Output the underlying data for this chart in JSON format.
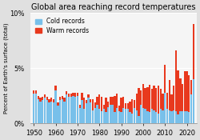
{
  "title": "Global area reaching record temperatures",
  "ylabel": "Percent of Earth's surface (total)",
  "ylim": [
    0,
    0.1
  ],
  "yticks": [
    0,
    0.05,
    0.1
  ],
  "ytick_labels": [
    "0%",
    "5%",
    "10%"
  ],
  "cold_color": "#78c0ea",
  "warm_color": "#e8391e",
  "bg_color": "#e0e0e0",
  "legend_labels": [
    "Cold records",
    "Warm records"
  ],
  "years": [
    1950,
    1951,
    1952,
    1953,
    1954,
    1955,
    1956,
    1957,
    1958,
    1959,
    1960,
    1961,
    1962,
    1963,
    1964,
    1965,
    1966,
    1967,
    1968,
    1969,
    1970,
    1971,
    1972,
    1973,
    1974,
    1975,
    1976,
    1977,
    1978,
    1979,
    1980,
    1981,
    1982,
    1983,
    1984,
    1985,
    1986,
    1987,
    1988,
    1989,
    1990,
    1991,
    1992,
    1993,
    1994,
    1995,
    1996,
    1997,
    1998,
    1999,
    2000,
    2001,
    2002,
    2003,
    2004,
    2005,
    2006,
    2007,
    2008,
    2009,
    2010,
    2011,
    2012,
    2013,
    2014,
    2015,
    2016,
    2017,
    2018,
    2019,
    2020,
    2021,
    2022,
    2023
  ],
  "cold": [
    0.027,
    0.027,
    0.022,
    0.02,
    0.021,
    0.023,
    0.021,
    0.019,
    0.02,
    0.019,
    0.03,
    0.016,
    0.021,
    0.022,
    0.02,
    0.026,
    0.024,
    0.024,
    0.025,
    0.024,
    0.025,
    0.014,
    0.021,
    0.013,
    0.018,
    0.023,
    0.019,
    0.012,
    0.014,
    0.017,
    0.013,
    0.011,
    0.013,
    0.01,
    0.015,
    0.017,
    0.017,
    0.01,
    0.014,
    0.011,
    0.01,
    0.014,
    0.013,
    0.013,
    0.01,
    0.009,
    0.014,
    0.012,
    0.007,
    0.017,
    0.014,
    0.013,
    0.011,
    0.01,
    0.013,
    0.012,
    0.01,
    0.009,
    0.013,
    0.012,
    0.028,
    0.013,
    0.012,
    0.011,
    0.012,
    0.011,
    0.008,
    0.011,
    0.011,
    0.011,
    0.011,
    0.01,
    0.026,
    0.04
  ],
  "warm": [
    0.003,
    0.003,
    0.003,
    0.003,
    0.003,
    0.003,
    0.003,
    0.003,
    0.003,
    0.003,
    0.004,
    0.003,
    0.003,
    0.003,
    0.003,
    0.003,
    0.003,
    0.003,
    0.003,
    0.004,
    0.003,
    0.003,
    0.007,
    0.01,
    0.003,
    0.003,
    0.003,
    0.01,
    0.005,
    0.007,
    0.013,
    0.013,
    0.004,
    0.013,
    0.005,
    0.007,
    0.007,
    0.015,
    0.013,
    0.005,
    0.013,
    0.01,
    0.005,
    0.005,
    0.01,
    0.013,
    0.007,
    0.015,
    0.025,
    0.013,
    0.022,
    0.019,
    0.022,
    0.025,
    0.018,
    0.022,
    0.022,
    0.025,
    0.018,
    0.015,
    0.025,
    0.015,
    0.027,
    0.015,
    0.022,
    0.055,
    0.04,
    0.03,
    0.025,
    0.036,
    0.036,
    0.034,
    0.013,
    0.05
  ]
}
